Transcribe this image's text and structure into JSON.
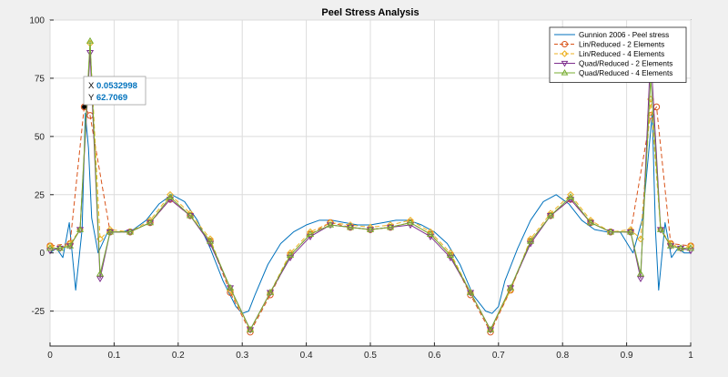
{
  "chart_data": {
    "type": "line",
    "title": "Peel Stress Analysis",
    "xlabel": "",
    "ylabel": "",
    "xlim": [
      0,
      1
    ],
    "ylim": [
      -40,
      100
    ],
    "xticks": [
      0,
      0.1,
      0.2,
      0.3,
      0.4,
      0.5,
      0.6,
      0.7,
      0.8,
      0.9,
      1
    ],
    "xtick_labels": [
      "0",
      "0.1",
      "0.2",
      "0.3",
      "0.4",
      "0.5",
      "0.6",
      "0.7",
      "0.8",
      "0.9",
      "1"
    ],
    "yticks": [
      -25,
      0,
      25,
      50,
      75,
      100
    ],
    "ytick_labels": [
      "-25",
      "0",
      "25",
      "50",
      "75",
      "100"
    ],
    "grid": true,
    "legend_position": "top-right",
    "series": [
      {
        "name": "Gunnion 2006 - Peel stress",
        "color": "#0072bd",
        "style": "solid",
        "marker": "none",
        "x": [
          0,
          0.01,
          0.02,
          0.03,
          0.04,
          0.05,
          0.055,
          0.06,
          0.065,
          0.075,
          0.09,
          0.11,
          0.13,
          0.15,
          0.17,
          0.19,
          0.21,
          0.23,
          0.25,
          0.27,
          0.29,
          0.3,
          0.31,
          0.32,
          0.34,
          0.36,
          0.38,
          0.4,
          0.42,
          0.44,
          0.46,
          0.48,
          0.5,
          0.52,
          0.54,
          0.56,
          0.58,
          0.6,
          0.62,
          0.64,
          0.66,
          0.68,
          0.69,
          0.7,
          0.71,
          0.73,
          0.75,
          0.77,
          0.79,
          0.81,
          0.83,
          0.85,
          0.87,
          0.89,
          0.91,
          0.925,
          0.935,
          0.94,
          0.945,
          0.95,
          0.96,
          0.97,
          0.98,
          0.99,
          1
        ],
        "y": [
          0,
          2,
          -2,
          13,
          -16,
          10,
          60,
          45,
          15,
          0,
          9,
          9,
          10,
          14,
          21,
          25,
          22,
          14,
          2,
          -12,
          -23,
          -26,
          -25,
          -18,
          -5,
          4,
          9,
          12,
          14,
          14,
          13,
          12,
          12,
          13,
          14,
          14,
          12,
          9,
          4,
          -5,
          -18,
          -25,
          -26,
          -23,
          -12,
          2,
          14,
          22,
          25,
          21,
          14,
          10,
          9,
          9,
          0,
          15,
          45,
          60,
          10,
          -16,
          13,
          -2,
          2,
          0,
          0
        ]
      },
      {
        "name": "Lin/Reduced - 2 Elements",
        "color": "#d95319",
        "style": "dashed",
        "marker": "circle",
        "x": [
          0,
          0.03125,
          0.0532998,
          0.0625,
          0.09375,
          0.125,
          0.15625,
          0.1875,
          0.21875,
          0.25,
          0.28125,
          0.3125,
          0.34375,
          0.375,
          0.40625,
          0.4375,
          0.46875,
          0.5,
          0.53125,
          0.5625,
          0.59375,
          0.625,
          0.65625,
          0.6875,
          0.71875,
          0.75,
          0.78125,
          0.8125,
          0.84375,
          0.875,
          0.90625,
          0.9375,
          0.9467002,
          0.96875,
          1
        ],
        "y": [
          3,
          4,
          62.7069,
          59,
          9,
          9,
          13,
          23,
          16,
          5,
          -17,
          -34,
          -18,
          -1,
          8,
          13,
          11,
          10,
          11,
          13,
          8,
          -1,
          -18,
          -34,
          -16,
          5,
          16,
          23,
          13,
          9,
          9,
          59,
          62.7069,
          4,
          3
        ]
      },
      {
        "name": "Lin/Reduced - 4 Elements",
        "color": "#edb120",
        "style": "dashed",
        "marker": "diamond",
        "x": [
          0,
          0.015625,
          0.03125,
          0.046875,
          0.0625,
          0.078125,
          0.09375,
          0.125,
          0.15625,
          0.1875,
          0.21875,
          0.25,
          0.28125,
          0.3125,
          0.34375,
          0.375,
          0.40625,
          0.4375,
          0.46875,
          0.5,
          0.53125,
          0.5625,
          0.59375,
          0.625,
          0.65625,
          0.6875,
          0.71875,
          0.75,
          0.78125,
          0.8125,
          0.84375,
          0.875,
          0.90625,
          0.921875,
          0.9375,
          0.953125,
          0.96875,
          0.984375,
          1
        ],
        "y": [
          3,
          2,
          4,
          10,
          90,
          6,
          10,
          9,
          14,
          25,
          17,
          6,
          -16,
          -33,
          -17,
          0,
          9,
          13,
          12,
          11,
          12,
          14,
          9,
          0,
          -17,
          -33,
          -16,
          6,
          17,
          25,
          14,
          9,
          10,
          6,
          66,
          10,
          4,
          2,
          3
        ]
      },
      {
        "name": "Quad/Reduced - 2 Elements",
        "color": "#7e2f8e",
        "style": "solid",
        "marker": "triangle-down",
        "x": [
          0,
          0.015625,
          0.03125,
          0.046875,
          0.0625,
          0.078125,
          0.09375,
          0.125,
          0.15625,
          0.1875,
          0.21875,
          0.25,
          0.28125,
          0.3125,
          0.34375,
          0.375,
          0.40625,
          0.4375,
          0.46875,
          0.5,
          0.53125,
          0.5625,
          0.59375,
          0.625,
          0.65625,
          0.6875,
          0.71875,
          0.75,
          0.78125,
          0.8125,
          0.84375,
          0.875,
          0.90625,
          0.921875,
          0.9375,
          0.953125,
          0.96875,
          0.984375,
          1
        ],
        "y": [
          1,
          2,
          3,
          10,
          86,
          -11,
          9,
          9,
          13,
          23,
          16,
          4,
          -15,
          -33,
          -17,
          -2,
          7,
          12,
          11,
          10,
          11,
          12,
          7,
          -2,
          -17,
          -33,
          -15,
          4,
          16,
          23,
          13,
          9,
          9,
          -11,
          86,
          10,
          3,
          2,
          1
        ]
      },
      {
        "name": "Quad/Reduced - 4 Elements",
        "color": "#77ac30",
        "style": "solid",
        "marker": "triangle-up",
        "x": [
          0,
          0.015625,
          0.03125,
          0.046875,
          0.0625,
          0.078125,
          0.09375,
          0.125,
          0.15625,
          0.1875,
          0.21875,
          0.25,
          0.28125,
          0.3125,
          0.34375,
          0.375,
          0.40625,
          0.4375,
          0.46875,
          0.5,
          0.53125,
          0.5625,
          0.59375,
          0.625,
          0.65625,
          0.6875,
          0.71875,
          0.75,
          0.78125,
          0.8125,
          0.84375,
          0.875,
          0.90625,
          0.921875,
          0.9375,
          0.953125,
          0.96875,
          0.984375,
          1
        ],
        "y": [
          2,
          2,
          3,
          10,
          91,
          -9,
          9,
          9,
          13,
          24,
          16,
          5,
          -15,
          -33,
          -17,
          -1,
          8,
          12,
          11,
          10,
          11,
          13,
          8,
          -1,
          -17,
          -33,
          -15,
          5,
          16,
          24,
          13,
          9,
          9,
          -9,
          75,
          10,
          3,
          2,
          2
        ]
      }
    ],
    "datatip": {
      "x_label": "X",
      "x_value": "0.0532998",
      "y_label": "Y",
      "y_value": "62.7069",
      "x": 0.0532998,
      "y": 62.7069
    }
  }
}
